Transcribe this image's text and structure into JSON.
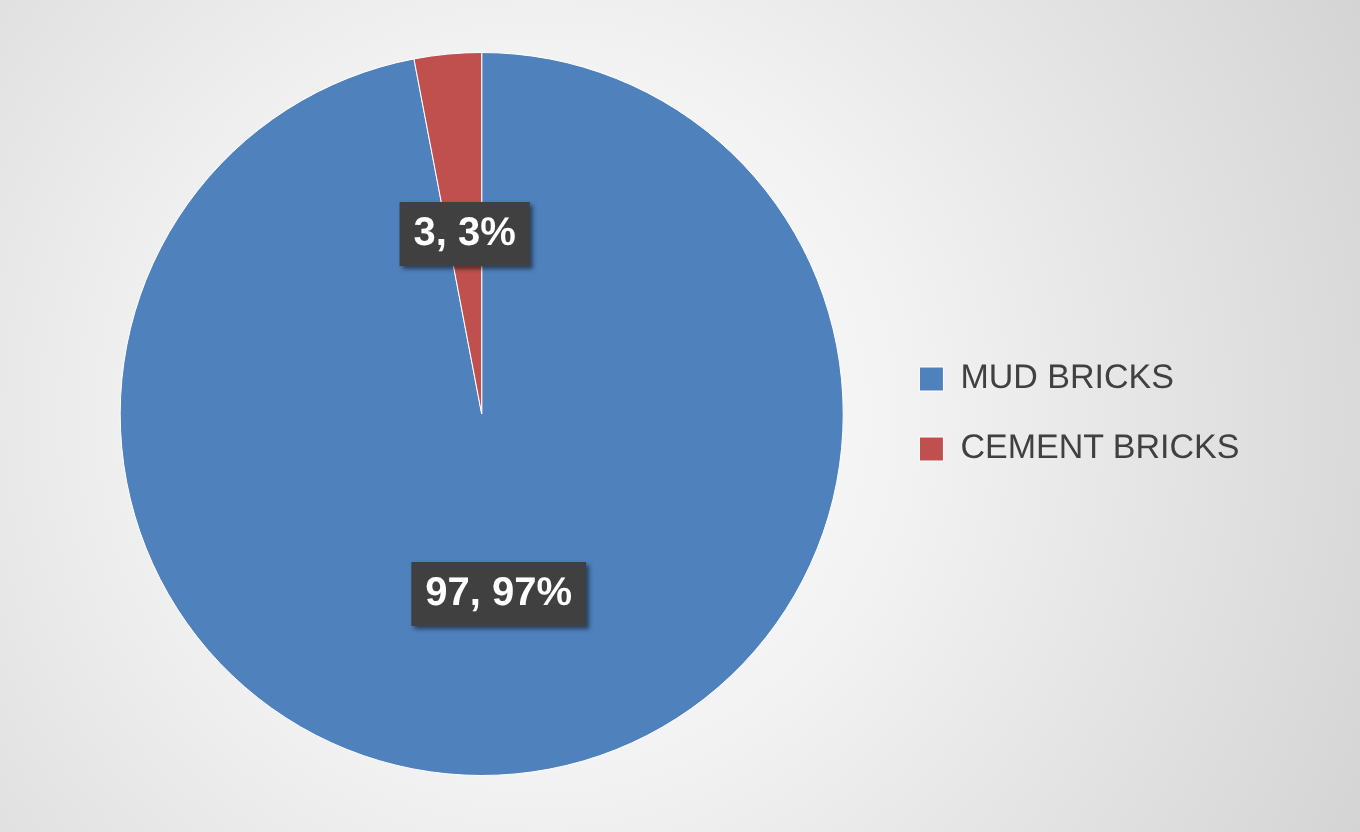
{
  "chart_data": {
    "type": "pie",
    "categories": [
      "MUD BRICKS",
      "CEMENT BRICKS"
    ],
    "values": [
      97,
      3
    ],
    "colors": [
      "#4f81bd",
      "#c0504d"
    ],
    "value_labels": [
      "97, 97%",
      "3, 3%"
    ],
    "legend": "right"
  }
}
